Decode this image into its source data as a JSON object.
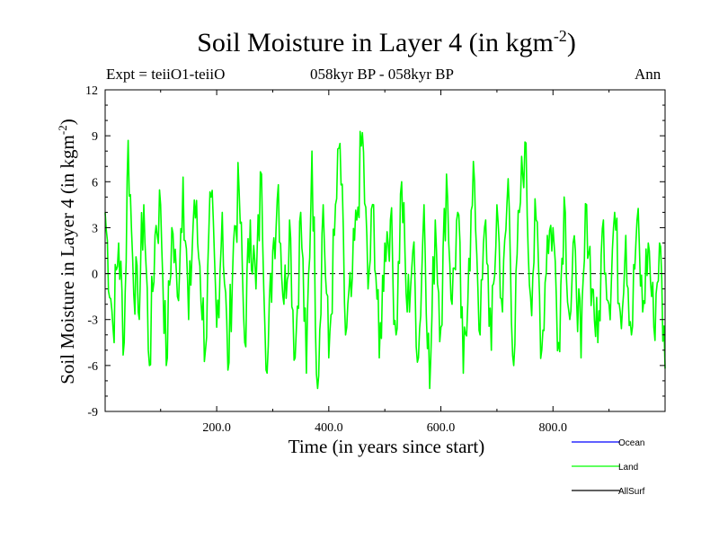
{
  "chart_data": {
    "type": "line",
    "title": "Soil Moisture in Layer 4 (in kgm",
    "title_sup": "-2",
    "title_suffix": ")",
    "subtitle": "058kyr BP - 058kyr BP",
    "annotation_left": "Expt = teiiO1-teiiO",
    "annotation_right": "Ann",
    "xlabel": "Time (in years since start)",
    "ylabel": "Soil Moisture in Layer 4 (in kgm",
    "ylabel_sup": "-2",
    "ylabel_suffix": ")",
    "xlim": [
      1,
      1000
    ],
    "ylim": [
      -9,
      12
    ],
    "x_ticks": [
      200,
      400,
      600,
      800
    ],
    "x_tick_labels": [
      "200.0",
      "400.0",
      "600.0",
      "800.0"
    ],
    "y_ticks": [
      -9,
      -6,
      -3,
      0,
      3,
      6,
      9,
      12
    ],
    "y_tick_labels": [
      "-9",
      "-6",
      "-3",
      "0",
      "3",
      "6",
      "9",
      "12"
    ],
    "zero_line": true,
    "legend": [
      {
        "name": "Ocean",
        "color": "#0000ff"
      },
      {
        "name": "Land",
        "color": "#00ff00"
      },
      {
        "name": "AllSurf",
        "color": "#000000"
      }
    ],
    "series": [
      {
        "name": "Land",
        "color": "#00ff00",
        "x": [
          1,
          15,
          25,
          35,
          42,
          50,
          60,
          70,
          80,
          90,
          100,
          110,
          120,
          130,
          140,
          150,
          160,
          170,
          180,
          190,
          200,
          210,
          220,
          230,
          240,
          250,
          260,
          270,
          280,
          290,
          300,
          310,
          320,
          330,
          340,
          350,
          360,
          370,
          380,
          390,
          400,
          410,
          420,
          430,
          440,
          450,
          460,
          470,
          480,
          490,
          500,
          510,
          520,
          530,
          540,
          550,
          560,
          570,
          580,
          590,
          600,
          610,
          620,
          630,
          640,
          650,
          660,
          670,
          680,
          690,
          700,
          710,
          720,
          730,
          740,
          750,
          760,
          770,
          780,
          790,
          800,
          810,
          820,
          830,
          840,
          850,
          860,
          870,
          880,
          890,
          900,
          910,
          920,
          930,
          940,
          950,
          960,
          970,
          980,
          990,
          1000
        ],
        "y": [
          4.0,
          -3.5,
          2.0,
          -4.5,
          8.7,
          1.0,
          -2.5,
          4.5,
          -6.0,
          2.5,
          4.5,
          -6.0,
          3.0,
          -1.5,
          6.3,
          -3.0,
          4.8,
          0.5,
          -5.0,
          5.0,
          -3.5,
          4.0,
          -6.3,
          2.0,
          5.5,
          -4.5,
          3.5,
          -1.0,
          6.5,
          -6.5,
          1.5,
          5.8,
          -2.0,
          3.5,
          -5.5,
          4.0,
          -6.5,
          8.0,
          -7.5,
          4.5,
          -5.5,
          2.5,
          8.5,
          -4.0,
          -1.5,
          3.5,
          9.2,
          -1.0,
          4.5,
          -5.5,
          2.0,
          3.5,
          -4.0,
          6.0,
          -2.5,
          1.5,
          -5.5,
          4.5,
          -7.5,
          3.5,
          -3.5,
          6.5,
          -2.0,
          4.0,
          -6.5,
          1.0,
          6.0,
          -4.0,
          3.5,
          -5.0,
          4.5,
          -2.5,
          6.2,
          -6.0,
          4.0,
          8.6,
          -1.5,
          3.5,
          -5.0,
          2.5,
          3.0,
          -4.5,
          5.0,
          -3.0,
          1.5,
          -5.5,
          4.5,
          -1.0,
          -4.5,
          3.5,
          -2.0,
          4.0,
          -2.5,
          2.5,
          -4.0,
          3.5,
          -2.5,
          2.0,
          -3.5,
          2.0,
          -6.2
        ]
      },
      {
        "name": "Ocean",
        "color": "#0000ff",
        "x": [],
        "y": []
      },
      {
        "name": "AllSurf",
        "color": "#000000",
        "x": [],
        "y": []
      }
    ]
  }
}
